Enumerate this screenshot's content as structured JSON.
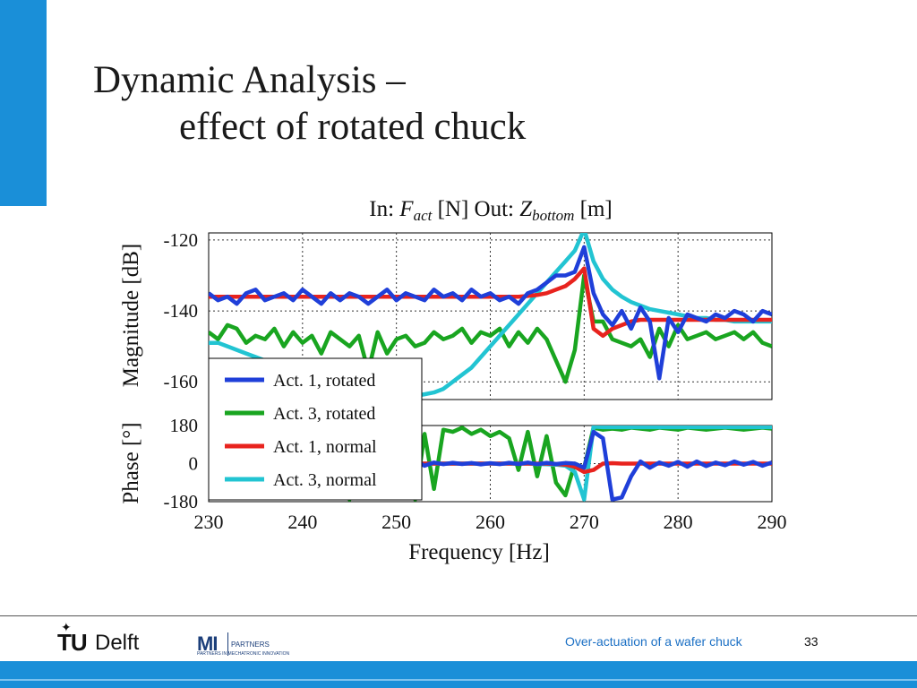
{
  "slide": {
    "title_line1": "Dynamic Analysis –",
    "title_line2": "effect of rotated chuck",
    "footer_text": "Over-actuation of  a wafer chuck",
    "page_number": "33",
    "logo_tudelft": {
      "tu": "TU",
      "delft": "Delft"
    },
    "logo_mi": {
      "mark": "MI",
      "line1": "PARTNERS",
      "line2": "PARTNERS IN MECHATRONIC INNOVATION"
    },
    "colors": {
      "accent": "#1a8fd8",
      "footer_text": "#1a6fc4"
    }
  },
  "chart_data": {
    "type": "line",
    "title": "In: F_act [N] Out: Z_bottom [m]",
    "title_parts": {
      "in": "In:",
      "f": "F",
      "f_sub": "act",
      "mid": "[N] Out:",
      "z": "Z",
      "z_sub": "bottom",
      "unit": "[m]"
    },
    "xlabel": "Frequency [Hz]",
    "xlim": [
      230,
      290
    ],
    "xticks": [
      230,
      240,
      250,
      260,
      270,
      280,
      290
    ],
    "magnitude": {
      "ylabel": "Magnitude [dB]",
      "ylim": [
        -165,
        -118
      ],
      "yticks": [
        -120,
        -140,
        -160
      ]
    },
    "phase": {
      "ylabel": "Phase [°]",
      "ylim": [
        -180,
        180
      ],
      "yticks": [
        180,
        0,
        -180
      ]
    },
    "x": [
      230,
      231,
      232,
      233,
      234,
      235,
      236,
      237,
      238,
      239,
      240,
      241,
      242,
      243,
      244,
      245,
      246,
      247,
      248,
      249,
      250,
      251,
      252,
      253,
      254,
      255,
      256,
      257,
      258,
      259,
      260,
      261,
      262,
      263,
      264,
      265,
      266,
      267,
      268,
      269,
      270,
      271,
      272,
      273,
      274,
      275,
      276,
      277,
      278,
      279,
      280,
      281,
      282,
      283,
      284,
      285,
      286,
      287,
      288,
      289,
      290
    ],
    "series": [
      {
        "name": "Act. 1, rotated",
        "color": "#1f3fd9",
        "magnitude": [
          -135,
          -137,
          -136,
          -138,
          -135,
          -134,
          -137,
          -136,
          -135,
          -137,
          -134,
          -136,
          -138,
          -135,
          -137,
          -135,
          -136,
          -138,
          -136,
          -134,
          -137,
          -135,
          -136,
          -137,
          -134,
          -136,
          -135,
          -137,
          -134,
          -136,
          -135,
          -137,
          -136,
          -138,
          -135,
          -134,
          -132,
          -130,
          -130,
          -129,
          -122,
          -135,
          -141,
          -144,
          -140,
          -145,
          -139,
          -143,
          -159,
          -142,
          -146,
          -141,
          -142,
          -143,
          -141,
          -142,
          -140,
          -141,
          -143,
          -140,
          -141
        ],
        "phase": [
          0,
          5,
          -3,
          4,
          -2,
          3,
          -4,
          2,
          -3,
          5,
          -2,
          3,
          -4,
          2,
          -3,
          4,
          -2,
          3,
          -5,
          2,
          -3,
          -80,
          15,
          -10,
          5,
          -3,
          4,
          -2,
          3,
          -4,
          2,
          -3,
          4,
          -2,
          5,
          -3,
          4,
          -2,
          3,
          0,
          -20,
          150,
          120,
          -170,
          -160,
          -60,
          10,
          -20,
          5,
          -10,
          8,
          -15,
          10,
          -12,
          5,
          -8,
          10,
          -5,
          8,
          -10,
          5
        ]
      },
      {
        "name": "Act. 3, rotated",
        "color": "#19a520",
        "magnitude": [
          -146,
          -148,
          -144,
          -145,
          -149,
          -147,
          -148,
          -145,
          -150,
          -146,
          -149,
          -147,
          -152,
          -146,
          -148,
          -150,
          -147,
          -157,
          -146,
          -152,
          -148,
          -147,
          -150,
          -149,
          -146,
          -148,
          -147,
          -145,
          -149,
          -146,
          -147,
          -145,
          -150,
          -146,
          -149,
          -145,
          -148,
          -154,
          -160,
          -151,
          -130,
          -143,
          -143,
          -148,
          -149,
          -150,
          -148,
          -153,
          -145,
          -150,
          -144,
          -148,
          -147,
          -146,
          -148,
          -147,
          -146,
          -148,
          -146,
          -149,
          -150
        ],
        "phase": [
          0,
          -10,
          5,
          -15,
          10,
          -20,
          15,
          -10,
          5,
          -20,
          10,
          -30,
          20,
          -15,
          140,
          -170,
          20,
          -100,
          170,
          150,
          -160,
          150,
          -170,
          140,
          -120,
          160,
          150,
          170,
          140,
          160,
          130,
          150,
          120,
          -30,
          150,
          -60,
          130,
          -90,
          -150,
          0,
          -20,
          170,
          160,
          165,
          160,
          170,
          165,
          160,
          170,
          165,
          160,
          170,
          165,
          160,
          165,
          170,
          165,
          160,
          165,
          170,
          165
        ]
      },
      {
        "name": "Act. 1, normal",
        "color": "#e8231e",
        "magnitude": [
          -136,
          -136,
          -136,
          -136,
          -136,
          -136,
          -136,
          -136,
          -136,
          -136,
          -136,
          -136,
          -136,
          -136,
          -136,
          -136,
          -136,
          -136,
          -136,
          -136,
          -136,
          -136,
          -136,
          -136,
          -136,
          -136,
          -136,
          -136,
          -136,
          -136,
          -136,
          -136,
          -136,
          -136,
          -135.8,
          -135.5,
          -135,
          -134,
          -133,
          -131,
          -128,
          -145,
          -147,
          -145,
          -144,
          -143,
          -142.5,
          -142.5,
          -142.5,
          -142.5,
          -142.5,
          -142.5,
          -142.5,
          -142.5,
          -142.5,
          -142.5,
          -142.5,
          -142.5,
          -142.5,
          -142.5,
          -142.5
        ],
        "phase": [
          0,
          0,
          0,
          0,
          0,
          0,
          0,
          0,
          0,
          0,
          0,
          0,
          0,
          0,
          0,
          0,
          0,
          0,
          0,
          0,
          0,
          0,
          0,
          0,
          0,
          0,
          0,
          0,
          0,
          0,
          0,
          0,
          0,
          0,
          0,
          0,
          0,
          -2,
          -5,
          -15,
          -40,
          -30,
          0,
          2,
          0,
          0,
          0,
          0,
          0,
          0,
          0,
          0,
          0,
          0,
          0,
          0,
          0,
          0,
          0,
          0,
          0
        ]
      },
      {
        "name": "Act. 3, normal",
        "color": "#22c4d2",
        "magnitude": [
          -149,
          -149,
          -150,
          -151,
          -152,
          -153,
          -154,
          -155,
          -156,
          -157,
          -158,
          -159,
          -160,
          -161,
          -162,
          -162.5,
          -163,
          -163.5,
          -164,
          -164,
          -164,
          -164,
          -164,
          -163.5,
          -163,
          -162,
          -160,
          -158,
          -156,
          -153,
          -150,
          -147,
          -144,
          -141,
          -138,
          -135,
          -132,
          -129,
          -126,
          -123,
          -117,
          -126,
          -131,
          -134,
          -136,
          -137.5,
          -138.5,
          -139.5,
          -140,
          -140.5,
          -141,
          -141.5,
          -142,
          -142,
          -142.5,
          -142.5,
          -143,
          -143,
          -143,
          -143,
          -143
        ],
        "phase": [
          0,
          0,
          0,
          0,
          0,
          0,
          0,
          0,
          0,
          0,
          0,
          0,
          0,
          0,
          0,
          0,
          0,
          0,
          0,
          0,
          0,
          0,
          0,
          0,
          0,
          0,
          0,
          0,
          0,
          0,
          0,
          0,
          0,
          0,
          0,
          -2,
          -3,
          -5,
          -10,
          -40,
          -170,
          175,
          172,
          172,
          172,
          172,
          172,
          172,
          172,
          172,
          172,
          172,
          172,
          172,
          172,
          172,
          172,
          172,
          172,
          172,
          172
        ]
      }
    ],
    "legend_position": "lower-left"
  }
}
